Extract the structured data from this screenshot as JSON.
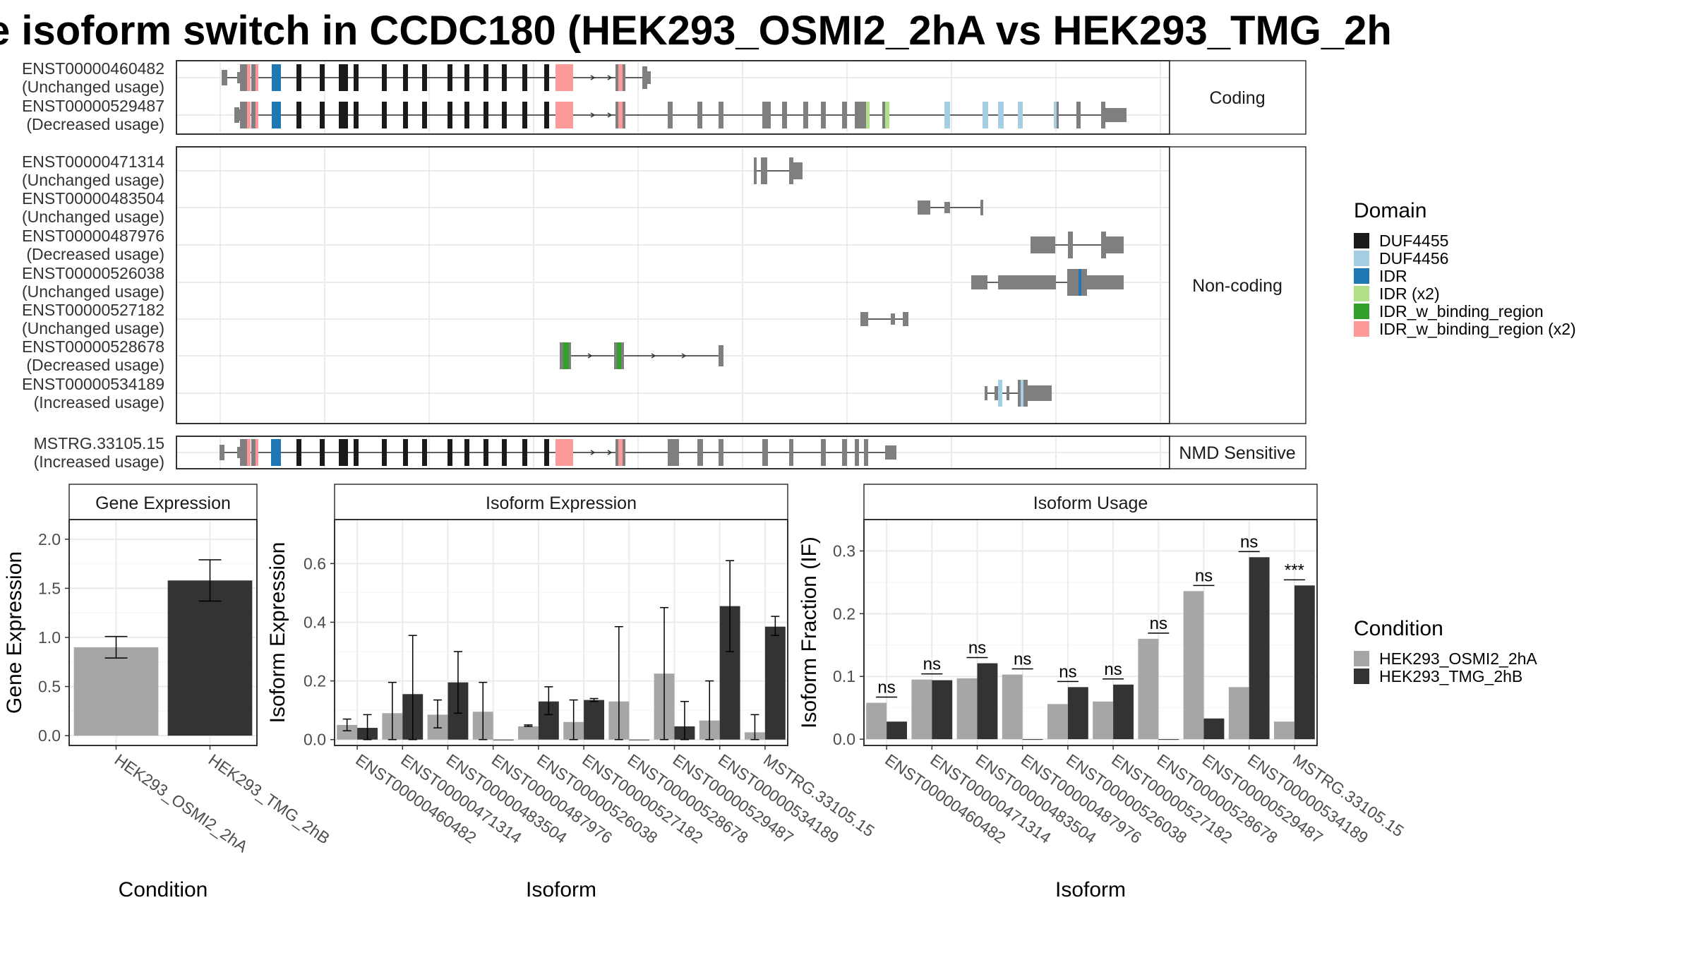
{
  "title": "e isoform switch in CCDC180 (HEK293_OSMI2_2hA vs HEK293_TMG_2h",
  "colors": {
    "DUF4455": "#1a1a1a",
    "DUF4456": "#a6cee3",
    "IDR": "#1f78b4",
    "IDR (x2)": "#b2df8a",
    "IDR_w_binding_region": "#33a02c",
    "IDR_w_binding_region (x2)": "#fb9a99",
    "none": "#7f7f7f",
    "cond_a": "#a6a6a6",
    "cond_b": "#333333"
  },
  "structure": {
    "panels": [
      {
        "label": "Coding",
        "isoforms": [
          {
            "id": "ENST00000460482",
            "usage": "(Unchanged usage)"
          },
          {
            "id": "ENST00000529487",
            "usage": "(Decreased usage)"
          }
        ]
      },
      {
        "label": "Non-coding",
        "isoforms": [
          {
            "id": "ENST00000471314",
            "usage": "(Unchanged usage)"
          },
          {
            "id": "ENST00000483504",
            "usage": "(Unchanged usage)"
          },
          {
            "id": "ENST00000487976",
            "usage": "(Decreased usage)"
          },
          {
            "id": "ENST00000526038",
            "usage": "(Unchanged usage)"
          },
          {
            "id": "ENST00000527182",
            "usage": "(Unchanged usage)"
          },
          {
            "id": "ENST00000528678",
            "usage": "(Decreased usage)"
          },
          {
            "id": "ENST00000534189",
            "usage": "(Increased usage)"
          }
        ]
      },
      {
        "label": "NMD Sensitive",
        "isoforms": [
          {
            "id": "MSTRG.33105.15",
            "usage": "(Increased usage)"
          }
        ]
      }
    ],
    "domain_legend": {
      "title": "Domain",
      "items": [
        "DUF4455",
        "DUF4456",
        "IDR",
        "IDR (x2)",
        "IDR_w_binding_region",
        "IDR_w_binding_region (x2)"
      ]
    }
  },
  "chart_data": [
    {
      "type": "bar",
      "title": "Gene Expression",
      "xlabel": "Condition",
      "ylabel": "Gene Expression",
      "categories": [
        "HEK293_OSMI2_2hA",
        "HEK293_TMG_2hB"
      ],
      "values": [
        0.9,
        1.58
      ],
      "error": [
        [
          0.79,
          1.01
        ],
        [
          1.37,
          1.79
        ]
      ],
      "yticks": [
        "0.0",
        "0.5",
        "1.0",
        "1.5",
        "2.0"
      ],
      "ylim": [
        -0.1,
        2.2
      ]
    },
    {
      "type": "bar",
      "title": "Isoform Expression",
      "xlabel": "Isoform",
      "ylabel": "Isoform Expression",
      "categories": [
        "ENST00000460482",
        "ENST00000471314",
        "ENST00000483504",
        "ENST00000487976",
        "ENST00000526038",
        "ENST00000527182",
        "ENST00000528678",
        "ENST00000529487",
        "ENST00000534189",
        "MSTRG.33105.15"
      ],
      "series": [
        {
          "name": "HEK293_OSMI2_2hA",
          "values": [
            0.05,
            0.09,
            0.085,
            0.095,
            0.045,
            0.06,
            0.13,
            0.225,
            0.065,
            0.025
          ],
          "error": [
            [
              0.03,
              0.07
            ],
            [
              0.0,
              0.195
            ],
            [
              0.04,
              0.135
            ],
            [
              0.0,
              0.195
            ],
            [
              0.045,
              0.05
            ],
            [
              0.0,
              0.135
            ],
            [
              0.0,
              0.385
            ],
            [
              0.0,
              0.45
            ],
            [
              0.0,
              0.2
            ],
            [
              0.0,
              0.085
            ]
          ]
        },
        {
          "name": "HEK293_TMG_2hB",
          "values": [
            0.04,
            0.155,
            0.195,
            0.0,
            0.13,
            0.135,
            0.0,
            0.045,
            0.455,
            0.385
          ],
          "error": [
            [
              0.0,
              0.085
            ],
            [
              0.0,
              0.355
            ],
            [
              0.09,
              0.3
            ],
            [
              0.0,
              0.0
            ],
            [
              0.085,
              0.18
            ],
            [
              0.13,
              0.14
            ],
            [
              0.0,
              0.0
            ],
            [
              0.0,
              0.13
            ],
            [
              0.3,
              0.61
            ],
            [
              0.355,
              0.42
            ]
          ]
        }
      ],
      "yticks": [
        "0.0",
        "0.2",
        "0.4",
        "0.6"
      ],
      "ylim": [
        -0.02,
        0.75
      ]
    },
    {
      "type": "bar",
      "title": "Isoform Usage",
      "xlabel": "Isoform",
      "ylabel": "Isoform Fraction (IF)",
      "categories": [
        "ENST00000460482",
        "ENST00000471314",
        "ENST00000483504",
        "ENST00000487976",
        "ENST00000526038",
        "ENST00000527182",
        "ENST00000528678",
        "ENST00000529487",
        "ENST00000534189",
        "MSTRG.33105.15"
      ],
      "series": [
        {
          "name": "HEK293_OSMI2_2hA",
          "values": [
            0.058,
            0.095,
            0.097,
            0.103,
            0.056,
            0.06,
            0.16,
            0.236,
            0.083,
            0.028
          ]
        },
        {
          "name": "HEK293_TMG_2hB",
          "values": [
            0.028,
            0.094,
            0.121,
            0.0,
            0.083,
            0.087,
            0.0,
            0.033,
            0.29,
            0.245
          ]
        }
      ],
      "significance": [
        "ns",
        "ns",
        "ns",
        "ns",
        "ns",
        "ns",
        "ns",
        "ns",
        "ns",
        "***"
      ],
      "yticks": [
        "0.0",
        "0.1",
        "0.2",
        "0.3"
      ],
      "ylim": [
        -0.01,
        0.35
      ]
    }
  ],
  "condition_legend": {
    "title": "Condition",
    "items": [
      "HEK293_OSMI2_2hA",
      "HEK293_TMG_2hB"
    ]
  }
}
